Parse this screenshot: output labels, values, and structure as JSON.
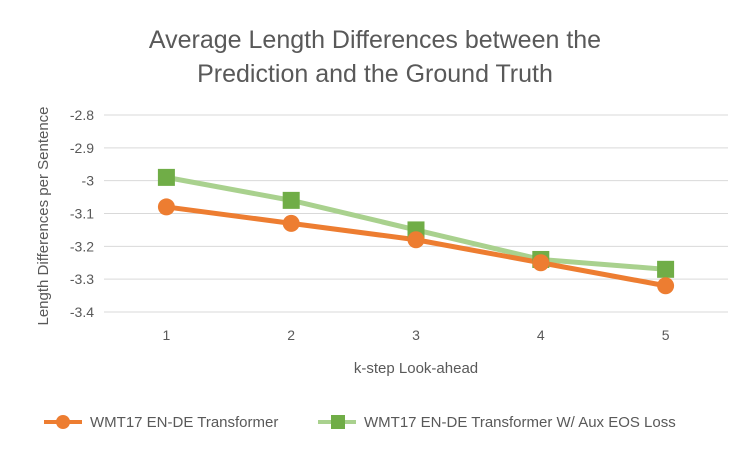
{
  "chart_data": {
    "type": "line",
    "title": [
      "Average Length Differences between the",
      "Prediction and the  Ground Truth"
    ],
    "xlabel": "k-step Look-ahead",
    "ylabel": "Length Differences per Sentence",
    "categories": [
      "1",
      "2",
      "3",
      "4",
      "5"
    ],
    "y_ticks": [
      "-2.8",
      "-2.9",
      "-3",
      "-3.1",
      "-3.2",
      "-3.3",
      "-3.4"
    ],
    "ylim": [
      -3.4,
      -2.8
    ],
    "grid": true,
    "legend_position": "bottom",
    "series": [
      {
        "name": "WMT17 EN-DE Transformer",
        "values": [
          -3.08,
          -3.13,
          -3.18,
          -3.25,
          -3.32
        ],
        "color": "#ed7d31",
        "marker": "circle"
      },
      {
        "name": "WMT17 EN-DE Transformer W/ Aux EOS Loss",
        "values": [
          -2.99,
          -3.06,
          -3.15,
          -3.24,
          -3.27
        ],
        "color": "#70ad47",
        "line_color": "#a9d18e",
        "marker": "square"
      }
    ]
  }
}
